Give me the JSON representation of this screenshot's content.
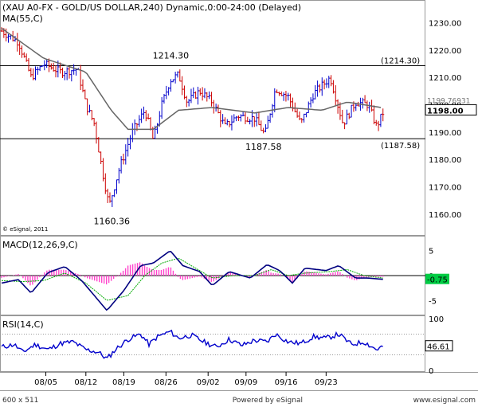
{
  "chart_data": [
    {
      "type": "candlestick",
      "title": "(XAU A0-FX - GOLD/US DOLLAR,240) Dynamic,0:00-24:00 (Delayed)",
      "overlay_label": "MA(55,C)",
      "credit": "© eSignal, 2011",
      "colors": {
        "up": "#0000cc",
        "down": "#cc0000",
        "ma": "#666666",
        "hline": "#000000"
      },
      "ylim": [
        1155,
        1236
      ],
      "yticks": [
        1160.0,
        1170.0,
        1180.0,
        1190.0,
        1200.0,
        1210.0,
        1220.0,
        1230.0
      ],
      "hlines": [
        1214.3,
        1187.58
      ],
      "hline_labels": [
        "(1214.30)",
        "(1187.58)"
      ],
      "annotations": [
        {
          "text": "1214.30",
          "x": 0.4,
          "y": 1214.3
        },
        {
          "text": "1187.58",
          "x": 0.62,
          "y": 1187.58
        },
        {
          "text": "1160.36",
          "x": 0.26,
          "y": 1160.36
        }
      ],
      "last_labels": [
        "1198.00",
        "1199.76931"
      ],
      "anchors": [
        {
          "x": 0.0,
          "y": 1227
        },
        {
          "x": 0.04,
          "y": 1223
        },
        {
          "x": 0.07,
          "y": 1210
        },
        {
          "x": 0.1,
          "y": 1215
        },
        {
          "x": 0.14,
          "y": 1212
        },
        {
          "x": 0.18,
          "y": 1213
        },
        {
          "x": 0.2,
          "y": 1200
        },
        {
          "x": 0.22,
          "y": 1193
        },
        {
          "x": 0.24,
          "y": 1175
        },
        {
          "x": 0.255,
          "y": 1163
        },
        {
          "x": 0.28,
          "y": 1177
        },
        {
          "x": 0.31,
          "y": 1190
        },
        {
          "x": 0.34,
          "y": 1198
        },
        {
          "x": 0.36,
          "y": 1187
        },
        {
          "x": 0.38,
          "y": 1200
        },
        {
          "x": 0.4,
          "y": 1209
        },
        {
          "x": 0.42,
          "y": 1211
        },
        {
          "x": 0.44,
          "y": 1201
        },
        {
          "x": 0.47,
          "y": 1205
        },
        {
          "x": 0.5,
          "y": 1201
        },
        {
          "x": 0.53,
          "y": 1192
        },
        {
          "x": 0.56,
          "y": 1196
        },
        {
          "x": 0.6,
          "y": 1195
        },
        {
          "x": 0.625,
          "y": 1189
        },
        {
          "x": 0.65,
          "y": 1206
        },
        {
          "x": 0.68,
          "y": 1203
        },
        {
          "x": 0.71,
          "y": 1193
        },
        {
          "x": 0.74,
          "y": 1204
        },
        {
          "x": 0.78,
          "y": 1210
        },
        {
          "x": 0.81,
          "y": 1193
        },
        {
          "x": 0.84,
          "y": 1201
        },
        {
          "x": 0.87,
          "y": 1200
        },
        {
          "x": 0.89,
          "y": 1192
        },
        {
          "x": 0.905,
          "y": 1197
        }
      ],
      "ma_points": [
        {
          "x": 0.0,
          "y": 1228
        },
        {
          "x": 0.1,
          "y": 1217
        },
        {
          "x": 0.2,
          "y": 1212
        },
        {
          "x": 0.26,
          "y": 1198
        },
        {
          "x": 0.3,
          "y": 1191
        },
        {
          "x": 0.36,
          "y": 1191
        },
        {
          "x": 0.42,
          "y": 1198
        },
        {
          "x": 0.5,
          "y": 1199
        },
        {
          "x": 0.6,
          "y": 1197
        },
        {
          "x": 0.68,
          "y": 1199
        },
        {
          "x": 0.76,
          "y": 1198
        },
        {
          "x": 0.82,
          "y": 1201
        },
        {
          "x": 0.9,
          "y": 1199
        }
      ]
    },
    {
      "type": "line",
      "title": "MACD(12,26,9,C)",
      "colors": {
        "macd": "#000080",
        "signal": "#00aa00",
        "hist": "#ff44cc"
      },
      "ylim": [
        -7.5,
        7.5
      ],
      "yticks": [
        5,
        0,
        -5
      ],
      "last_label": "-0.75",
      "macd": [
        {
          "x": 0.0,
          "y": -1.5
        },
        {
          "x": 0.04,
          "y": -0.8
        },
        {
          "x": 0.07,
          "y": -3.5
        },
        {
          "x": 0.11,
          "y": 0.6
        },
        {
          "x": 0.15,
          "y": 1.8
        },
        {
          "x": 0.19,
          "y": -1.0
        },
        {
          "x": 0.22,
          "y": -4.0
        },
        {
          "x": 0.25,
          "y": -7.0
        },
        {
          "x": 0.29,
          "y": -3.0
        },
        {
          "x": 0.33,
          "y": 2.0
        },
        {
          "x": 0.36,
          "y": 2.5
        },
        {
          "x": 0.4,
          "y": 5.0
        },
        {
          "x": 0.43,
          "y": 2.0
        },
        {
          "x": 0.47,
          "y": 0.8
        },
        {
          "x": 0.5,
          "y": -2.0
        },
        {
          "x": 0.54,
          "y": 0.8
        },
        {
          "x": 0.59,
          "y": -0.5
        },
        {
          "x": 0.63,
          "y": 2.2
        },
        {
          "x": 0.66,
          "y": 1.0
        },
        {
          "x": 0.69,
          "y": -1.5
        },
        {
          "x": 0.72,
          "y": 1.5
        },
        {
          "x": 0.77,
          "y": 1.0
        },
        {
          "x": 0.8,
          "y": 2.0
        },
        {
          "x": 0.84,
          "y": -0.5
        },
        {
          "x": 0.87,
          "y": -0.5
        },
        {
          "x": 0.905,
          "y": -0.75
        }
      ],
      "signal": [
        {
          "x": 0.0,
          "y": -1.0
        },
        {
          "x": 0.05,
          "y": -1.2
        },
        {
          "x": 0.1,
          "y": -1.0
        },
        {
          "x": 0.15,
          "y": 0.5
        },
        {
          "x": 0.2,
          "y": -1.5
        },
        {
          "x": 0.25,
          "y": -5.0
        },
        {
          "x": 0.3,
          "y": -4.0
        },
        {
          "x": 0.34,
          "y": 0.0
        },
        {
          "x": 0.38,
          "y": 2.5
        },
        {
          "x": 0.42,
          "y": 3.5
        },
        {
          "x": 0.46,
          "y": 1.5
        },
        {
          "x": 0.5,
          "y": -0.5
        },
        {
          "x": 0.55,
          "y": 0.0
        },
        {
          "x": 0.6,
          "y": 0.0
        },
        {
          "x": 0.64,
          "y": 1.2
        },
        {
          "x": 0.68,
          "y": 0.0
        },
        {
          "x": 0.72,
          "y": 0.5
        },
        {
          "x": 0.78,
          "y": 0.8
        },
        {
          "x": 0.82,
          "y": 1.2
        },
        {
          "x": 0.86,
          "y": 0.0
        },
        {
          "x": 0.905,
          "y": -0.5
        }
      ]
    },
    {
      "type": "line",
      "title": "RSI(14,C)",
      "color": "#0000cc",
      "ylim": [
        0,
        100
      ],
      "yticks": [
        100,
        50,
        0
      ],
      "last_label": "46.61",
      "values": [
        {
          "x": 0.0,
          "y": 45
        },
        {
          "x": 0.03,
          "y": 50
        },
        {
          "x": 0.05,
          "y": 35
        },
        {
          "x": 0.08,
          "y": 50
        },
        {
          "x": 0.11,
          "y": 40
        },
        {
          "x": 0.14,
          "y": 52
        },
        {
          "x": 0.17,
          "y": 55
        },
        {
          "x": 0.2,
          "y": 40
        },
        {
          "x": 0.23,
          "y": 35
        },
        {
          "x": 0.25,
          "y": 22
        },
        {
          "x": 0.27,
          "y": 40
        },
        {
          "x": 0.3,
          "y": 60
        },
        {
          "x": 0.33,
          "y": 70
        },
        {
          "x": 0.35,
          "y": 50
        },
        {
          "x": 0.37,
          "y": 65
        },
        {
          "x": 0.4,
          "y": 75
        },
        {
          "x": 0.42,
          "y": 62
        },
        {
          "x": 0.45,
          "y": 68
        },
        {
          "x": 0.48,
          "y": 55
        },
        {
          "x": 0.51,
          "y": 45
        },
        {
          "x": 0.54,
          "y": 60
        },
        {
          "x": 0.57,
          "y": 48
        },
        {
          "x": 0.6,
          "y": 58
        },
        {
          "x": 0.63,
          "y": 55
        },
        {
          "x": 0.65,
          "y": 70
        },
        {
          "x": 0.68,
          "y": 55
        },
        {
          "x": 0.71,
          "y": 52
        },
        {
          "x": 0.74,
          "y": 65
        },
        {
          "x": 0.77,
          "y": 62
        },
        {
          "x": 0.8,
          "y": 70
        },
        {
          "x": 0.83,
          "y": 50
        },
        {
          "x": 0.86,
          "y": 55
        },
        {
          "x": 0.89,
          "y": 40
        },
        {
          "x": 0.905,
          "y": 46.61
        }
      ]
    }
  ],
  "x_axis": {
    "ticks": [
      {
        "label": "08/05",
        "x": 0.105
      },
      {
        "label": "08/12",
        "x": 0.2
      },
      {
        "label": "08/19",
        "x": 0.29
      },
      {
        "label": "08/26",
        "x": 0.39
      },
      {
        "label": "09/02",
        "x": 0.49
      },
      {
        "label": "09/09",
        "x": 0.58
      },
      {
        "label": "09/16",
        "x": 0.675
      },
      {
        "label": "09/23",
        "x": 0.77
      }
    ]
  },
  "footer": {
    "left": "600 x 511",
    "center": "Powered by eSignal",
    "right": "www.esignal.com"
  }
}
